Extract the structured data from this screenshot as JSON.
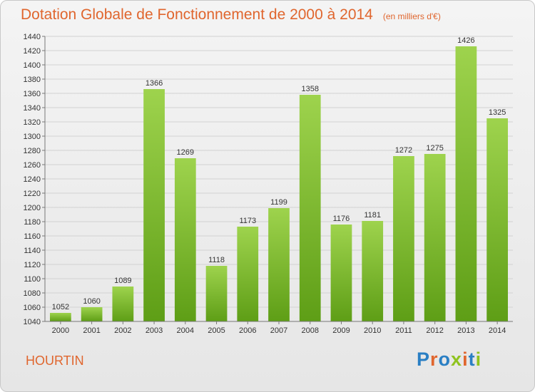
{
  "chart_data": {
    "type": "bar",
    "title": "Dotation Globale de Fonctionnement de 2000 à 2014",
    "unit": "(en milliers d'€)",
    "categories": [
      "2000",
      "2001",
      "2002",
      "2003",
      "2004",
      "2005",
      "2006",
      "2007",
      "2008",
      "2009",
      "2010",
      "2011",
      "2012",
      "2013",
      "2014"
    ],
    "values": [
      1052,
      1060,
      1089,
      1366,
      1269,
      1118,
      1173,
      1199,
      1358,
      1176,
      1181,
      1272,
      1275,
      1426,
      1325
    ],
    "ylim": [
      1040,
      1440
    ],
    "ytick_step": 20,
    "grid": true,
    "bar_color": "#7cb82f"
  },
  "place_name": "HOURTIN",
  "logo": {
    "text": "Proxiti",
    "colors": [
      "#2a7fc4",
      "#e0662e",
      "#2a7fc4",
      "#8fc31f",
      "#e0662e",
      "#2a7fc4",
      "#8fc31f"
    ]
  }
}
